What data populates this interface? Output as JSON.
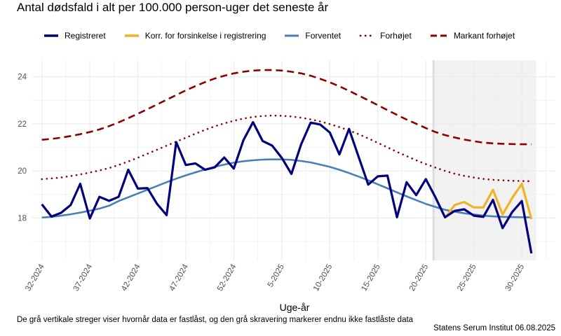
{
  "colors": {
    "registered": "#00007f",
    "corrected": "#f0b323",
    "expected": "#4a7fb5",
    "elevated": "#8b0000",
    "markedly_elevated": "#8b0000",
    "shade": "#f2f2f2",
    "grid": "#ebebeb",
    "vline": "#dcdcdc"
  },
  "chart_data": {
    "type": "line",
    "title": "Antal dødsfald i alt per 100.000 person-uger det seneste år",
    "xlabel": "Uge-år",
    "ylabel": "",
    "ylim": [
      16.2,
      24.7
    ],
    "y_ticks": [
      18,
      20,
      22,
      24
    ],
    "x_index_range": [
      -1,
      53.5
    ],
    "x_tick_labels": [
      {
        "index": 0,
        "label": "32-2024"
      },
      {
        "index": 5,
        "label": "37-2024"
      },
      {
        "index": 10,
        "label": "42-2024"
      },
      {
        "index": 15,
        "label": "47-2024"
      },
      {
        "index": 20,
        "label": "52-2024"
      },
      {
        "index": 25,
        "label": "5-2025"
      },
      {
        "index": 30,
        "label": "10-2025"
      },
      {
        "index": 35,
        "label": "15-2025"
      },
      {
        "index": 40,
        "label": "20-2025"
      },
      {
        "index": 45,
        "label": "25-2025"
      },
      {
        "index": 50,
        "label": "30-2025"
      }
    ],
    "legend_position": "top",
    "not_locked_from_index": 40.8,
    "not_locked_to_index": 51.5,
    "series": [
      {
        "name": "Registreret",
        "key": "registered",
        "style": "solid",
        "start_index": 0,
        "values": [
          18.58,
          18.06,
          18.22,
          18.55,
          19.45,
          17.98,
          18.9,
          18.73,
          18.9,
          20.05,
          19.25,
          19.27,
          18.6,
          18.12,
          21.22,
          20.25,
          20.32,
          20.05,
          20.15,
          20.57,
          20.1,
          21.3,
          22.07,
          21.27,
          21.07,
          20.55,
          19.87,
          21.12,
          22.05,
          21.97,
          21.63,
          20.7,
          21.78,
          20.6,
          19.42,
          19.77,
          19.8,
          18.03,
          19.52,
          18.97,
          19.65,
          18.88,
          18.03,
          18.3,
          18.37,
          18.1,
          18.05,
          18.77,
          17.57,
          18.25,
          18.72,
          16.5
        ]
      },
      {
        "name": "Korr. for forsinkelse i registrering",
        "key": "corrected",
        "style": "solid",
        "start_index": 42,
        "values": [
          18.0,
          18.55,
          18.68,
          18.45,
          18.45,
          19.2,
          18.15,
          18.85,
          19.45,
          17.95
        ]
      },
      {
        "name": "Forventet",
        "key": "expected",
        "style": "solid",
        "start_index": 0,
        "values": [
          18.02,
          18.05,
          18.1,
          18.16,
          18.23,
          18.31,
          18.4,
          18.52,
          18.72,
          18.88,
          19.04,
          19.2,
          19.36,
          19.52,
          19.67,
          19.81,
          19.94,
          20.06,
          20.17,
          20.27,
          20.35,
          20.41,
          20.45,
          20.48,
          20.49,
          20.49,
          20.47,
          20.42,
          20.36,
          20.27,
          20.17,
          20.05,
          19.91,
          19.76,
          19.6,
          19.43,
          19.26,
          19.09,
          18.92,
          18.76,
          18.6,
          18.47,
          18.35,
          18.27,
          18.2,
          18.15,
          18.1,
          18.07,
          18.05,
          18.04,
          18.03,
          18.03
        ]
      },
      {
        "name": "Forhøjet",
        "key": "elevated",
        "style": "dotted",
        "start_index": 0,
        "values": [
          19.65,
          19.68,
          19.72,
          19.78,
          19.85,
          19.93,
          20.02,
          20.12,
          20.25,
          20.4,
          20.56,
          20.73,
          20.9,
          21.07,
          21.24,
          21.41,
          21.58,
          21.74,
          21.89,
          22.02,
          22.13,
          22.22,
          22.29,
          22.33,
          22.35,
          22.34,
          22.31,
          22.26,
          22.19,
          22.1,
          21.99,
          21.86,
          21.72,
          21.56,
          21.38,
          21.19,
          21.0,
          20.81,
          20.63,
          20.45,
          20.29,
          20.14,
          20.0,
          19.88,
          19.79,
          19.72,
          19.66,
          19.62,
          19.6,
          19.58,
          19.57,
          19.56
        ]
      },
      {
        "name": "Markant forhøjet",
        "key": "markedly_elevated",
        "style": "dashed",
        "start_index": 0,
        "values": [
          21.32,
          21.36,
          21.41,
          21.48,
          21.56,
          21.65,
          21.76,
          21.9,
          22.06,
          22.24,
          22.43,
          22.62,
          22.82,
          23.02,
          23.22,
          23.42,
          23.6,
          23.77,
          23.92,
          24.04,
          24.14,
          24.21,
          24.26,
          24.28,
          24.28,
          24.26,
          24.21,
          24.14,
          24.04,
          23.91,
          23.76,
          23.59,
          23.4,
          23.2,
          23.0,
          22.79,
          22.58,
          22.38,
          22.18,
          22.0,
          21.82,
          21.65,
          21.52,
          21.42,
          21.33,
          21.26,
          21.2,
          21.17,
          21.15,
          21.14,
          21.13,
          21.13
        ]
      }
    ]
  },
  "footnote": "De grå vertikale streger viser hvornår data er fastlåst, og den grå skravering markerer endnu ikke fastlåste data",
  "source": "Statens Serum Institut  06.08.2025"
}
